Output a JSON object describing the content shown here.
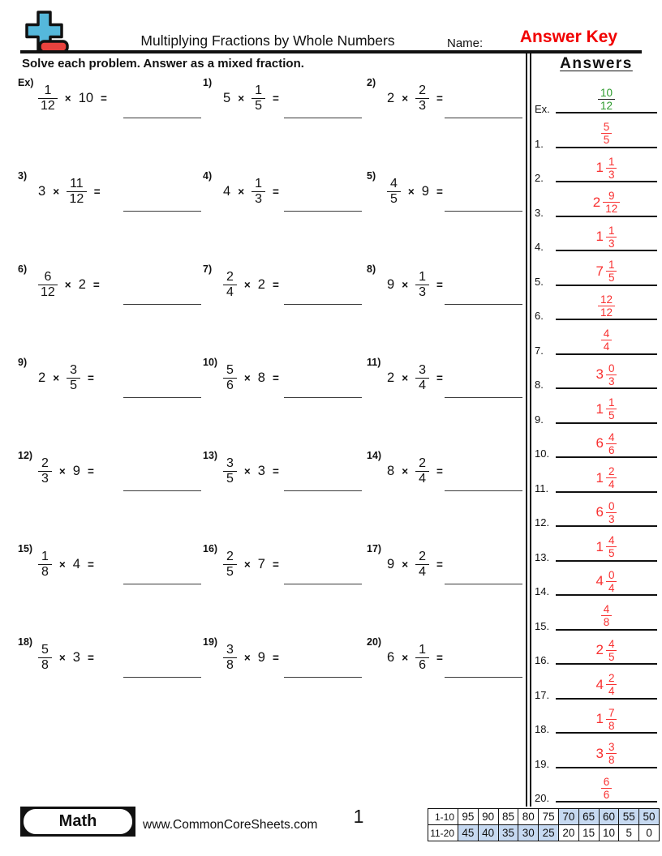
{
  "header": {
    "title": "Multiplying Fractions by Whole Numbers",
    "name_label": "Name:",
    "answer_key": "Answer Key",
    "instruction": "Solve each problem. Answer as a mixed fraction."
  },
  "answers_panel": {
    "title": "Answers"
  },
  "symbols": {
    "times": "×",
    "equals": "="
  },
  "colors": {
    "answer_key_red": "#f10000",
    "answer_red": "#f83030",
    "example_green": "#2e9b2e",
    "score_blue": "#c6d9f1",
    "logo_blue": "#55b8db",
    "logo_red": "#e8423e"
  },
  "problems": [
    {
      "label": "Ex)",
      "a": {
        "n": "1",
        "d": "12"
      },
      "b": {
        "w": "10"
      }
    },
    {
      "label": "1)",
      "a": {
        "w": "5"
      },
      "b": {
        "n": "1",
        "d": "5"
      }
    },
    {
      "label": "2)",
      "a": {
        "w": "2"
      },
      "b": {
        "n": "2",
        "d": "3"
      }
    },
    {
      "label": "3)",
      "a": {
        "w": "3"
      },
      "b": {
        "n": "11",
        "d": "12"
      }
    },
    {
      "label": "4)",
      "a": {
        "w": "4"
      },
      "b": {
        "n": "1",
        "d": "3"
      }
    },
    {
      "label": "5)",
      "a": {
        "n": "4",
        "d": "5"
      },
      "b": {
        "w": "9"
      }
    },
    {
      "label": "6)",
      "a": {
        "n": "6",
        "d": "12"
      },
      "b": {
        "w": "2"
      }
    },
    {
      "label": "7)",
      "a": {
        "n": "2",
        "d": "4"
      },
      "b": {
        "w": "2"
      }
    },
    {
      "label": "8)",
      "a": {
        "w": "9"
      },
      "b": {
        "n": "1",
        "d": "3"
      }
    },
    {
      "label": "9)",
      "a": {
        "w": "2"
      },
      "b": {
        "n": "3",
        "d": "5"
      }
    },
    {
      "label": "10)",
      "a": {
        "n": "5",
        "d": "6"
      },
      "b": {
        "w": "8"
      }
    },
    {
      "label": "11)",
      "a": {
        "w": "2"
      },
      "b": {
        "n": "3",
        "d": "4"
      }
    },
    {
      "label": "12)",
      "a": {
        "n": "2",
        "d": "3"
      },
      "b": {
        "w": "9"
      }
    },
    {
      "label": "13)",
      "a": {
        "n": "3",
        "d": "5"
      },
      "b": {
        "w": "3"
      }
    },
    {
      "label": "14)",
      "a": {
        "w": "8"
      },
      "b": {
        "n": "2",
        "d": "4"
      }
    },
    {
      "label": "15)",
      "a": {
        "n": "1",
        "d": "8"
      },
      "b": {
        "w": "4"
      }
    },
    {
      "label": "16)",
      "a": {
        "n": "2",
        "d": "5"
      },
      "b": {
        "w": "7"
      }
    },
    {
      "label": "17)",
      "a": {
        "w": "9"
      },
      "b": {
        "n": "2",
        "d": "4"
      }
    },
    {
      "label": "18)",
      "a": {
        "n": "5",
        "d": "8"
      },
      "b": {
        "w": "3"
      }
    },
    {
      "label": "19)",
      "a": {
        "n": "3",
        "d": "8"
      },
      "b": {
        "w": "9"
      }
    },
    {
      "label": "20)",
      "a": {
        "w": "6"
      },
      "b": {
        "n": "1",
        "d": "6"
      }
    }
  ],
  "answers": [
    {
      "label": "Ex.",
      "n": "10",
      "d": "12",
      "green": true
    },
    {
      "label": "1.",
      "n": "5",
      "d": "5"
    },
    {
      "label": "2.",
      "w": "1",
      "n": "1",
      "d": "3"
    },
    {
      "label": "3.",
      "w": "2",
      "n": "9",
      "d": "12"
    },
    {
      "label": "4.",
      "w": "1",
      "n": "1",
      "d": "3"
    },
    {
      "label": "5.",
      "w": "7",
      "n": "1",
      "d": "5"
    },
    {
      "label": "6.",
      "n": "12",
      "d": "12"
    },
    {
      "label": "7.",
      "n": "4",
      "d": "4"
    },
    {
      "label": "8.",
      "w": "3",
      "n": "0",
      "d": "3"
    },
    {
      "label": "9.",
      "w": "1",
      "n": "1",
      "d": "5"
    },
    {
      "label": "10.",
      "w": "6",
      "n": "4",
      "d": "6"
    },
    {
      "label": "11.",
      "w": "1",
      "n": "2",
      "d": "4"
    },
    {
      "label": "12.",
      "w": "6",
      "n": "0",
      "d": "3"
    },
    {
      "label": "13.",
      "w": "1",
      "n": "4",
      "d": "5"
    },
    {
      "label": "14.",
      "w": "4",
      "n": "0",
      "d": "4"
    },
    {
      "label": "15.",
      "n": "4",
      "d": "8"
    },
    {
      "label": "16.",
      "w": "2",
      "n": "4",
      "d": "5"
    },
    {
      "label": "17.",
      "w": "4",
      "n": "2",
      "d": "4"
    },
    {
      "label": "18.",
      "w": "1",
      "n": "7",
      "d": "8"
    },
    {
      "label": "19.",
      "w": "3",
      "n": "3",
      "d": "8"
    },
    {
      "label": "20.",
      "n": "6",
      "d": "6"
    }
  ],
  "footer": {
    "badge": "Math",
    "site": "www.CommonCoreSheets.com",
    "page": "1",
    "score_rows": [
      {
        "label": "1-10",
        "cells": [
          {
            "v": "95"
          },
          {
            "v": "90"
          },
          {
            "v": "85"
          },
          {
            "v": "80"
          },
          {
            "v": "75"
          },
          {
            "v": "70",
            "blue": true
          },
          {
            "v": "65",
            "blue": true
          },
          {
            "v": "60",
            "blue": true
          },
          {
            "v": "55",
            "blue": true
          },
          {
            "v": "50",
            "blue": true
          }
        ]
      },
      {
        "label": "11-20",
        "cells": [
          {
            "v": "45",
            "blue": true
          },
          {
            "v": "40",
            "blue": true
          },
          {
            "v": "35",
            "blue": true
          },
          {
            "v": "30",
            "blue": true
          },
          {
            "v": "25",
            "blue": true
          },
          {
            "v": "20"
          },
          {
            "v": "15"
          },
          {
            "v": "10"
          },
          {
            "v": "5"
          },
          {
            "v": "0"
          }
        ]
      }
    ]
  }
}
